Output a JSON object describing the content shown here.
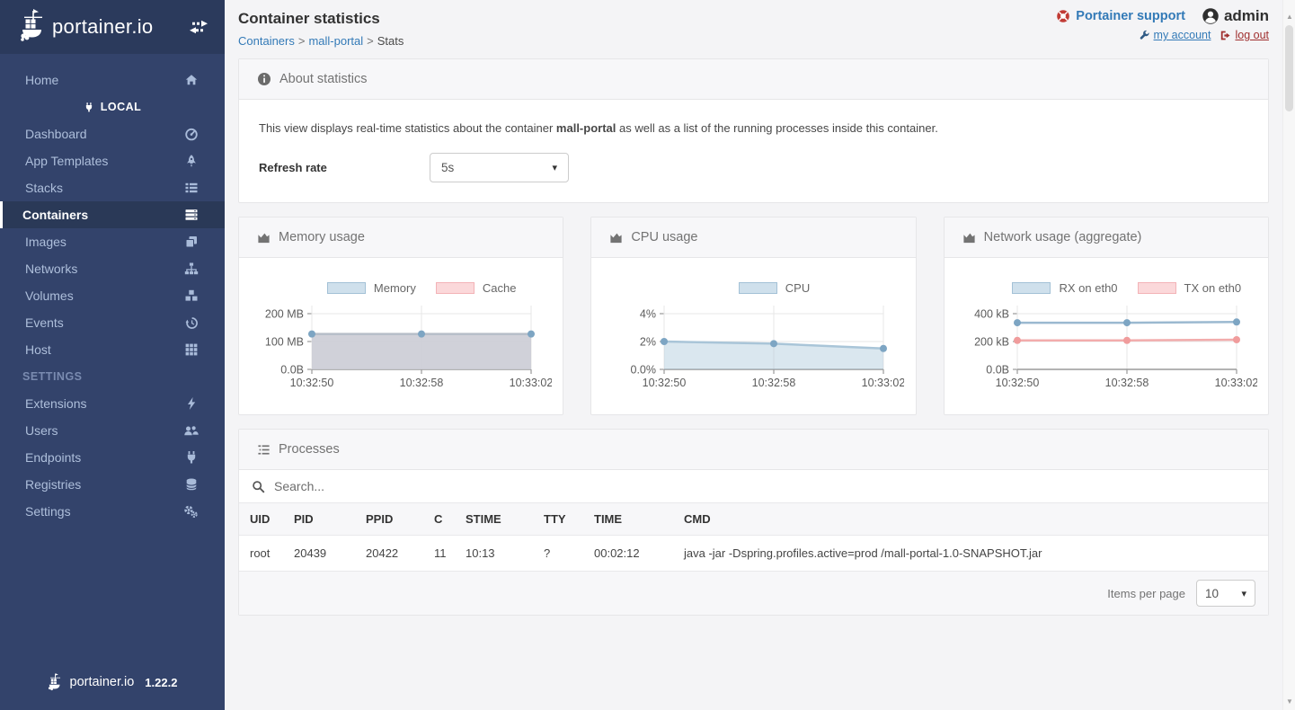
{
  "sidebar": {
    "logo_text": "portainer.io",
    "version": "1.22.2",
    "local_label": "LOCAL",
    "settings_label": "SETTINGS",
    "items": [
      {
        "label": "Home",
        "icon": "home-icon"
      },
      {
        "label": "Dashboard",
        "icon": "dashboard-icon"
      },
      {
        "label": "App Templates",
        "icon": "rocket-icon"
      },
      {
        "label": "Stacks",
        "icon": "stacks-icon"
      },
      {
        "label": "Containers",
        "icon": "server-icon",
        "selected": true
      },
      {
        "label": "Images",
        "icon": "layers-icon"
      },
      {
        "label": "Networks",
        "icon": "sitemap-icon"
      },
      {
        "label": "Volumes",
        "icon": "cubes-icon"
      },
      {
        "label": "Events",
        "icon": "history-icon"
      },
      {
        "label": "Host",
        "icon": "grid-icon"
      },
      {
        "label": "Extensions",
        "icon": "bolt-icon"
      },
      {
        "label": "Users",
        "icon": "users-icon"
      },
      {
        "label": "Endpoints",
        "icon": "plug-icon"
      },
      {
        "label": "Registries",
        "icon": "database-icon"
      },
      {
        "label": "Settings",
        "icon": "cogs-icon"
      }
    ]
  },
  "header": {
    "title": "Container statistics",
    "breadcrumb_separator": ">",
    "breadcrumb": [
      {
        "label": "Containers"
      },
      {
        "label": "mall-portal"
      },
      {
        "label": "Stats"
      }
    ],
    "support_label": "Portainer support",
    "username": "admin",
    "my_account_label": "my account",
    "log_out_label": "log out"
  },
  "about": {
    "title": "About statistics",
    "description_prefix": "This view displays real-time statistics about the container ",
    "container_name": "mall-portal",
    "description_suffix": " as well as a list of the running processes inside this container.",
    "refresh_label": "Refresh rate",
    "refresh_value": "5s"
  },
  "chart_data": [
    {
      "type": "area",
      "title": "Memory usage",
      "x": [
        "10:32:50",
        "10:32:58",
        "10:33:02"
      ],
      "xlabel": "",
      "ylabel": "",
      "ymax_tick": 200,
      "yticks": [
        {
          "value": 0,
          "label": "0.0B"
        },
        {
          "value": 100,
          "label": "100 MB"
        },
        {
          "value": 200,
          "label": "200 MB"
        }
      ],
      "legend_position": "top",
      "series": [
        {
          "name": "Memory",
          "values": [
            127,
            127,
            127
          ],
          "filled": true,
          "line_color": "#b6bdc8",
          "fill_color": "rgba(204,205,214,0.92)",
          "dot_color": "#7da5c3",
          "legend_fill": "#cfe0ec",
          "legend_border": "#a3c1d6"
        },
        {
          "name": "Cache",
          "values": [
            0,
            0,
            0
          ],
          "filled": false,
          "hidden": true,
          "line_color": "#f2acac",
          "dot_color": "#f09c9c",
          "legend_fill": "#fbd8da",
          "legend_border": "#f3b3b7"
        }
      ]
    },
    {
      "type": "area",
      "title": "CPU usage",
      "x": [
        "10:32:50",
        "10:32:58",
        "10:33:02"
      ],
      "xlabel": "",
      "ylabel": "",
      "ymax_tick": 4,
      "yticks": [
        {
          "value": 0,
          "label": "0.0%"
        },
        {
          "value": 2,
          "label": "2%"
        },
        {
          "value": 4,
          "label": "4%"
        }
      ],
      "legend_position": "top",
      "series": [
        {
          "name": "CPU",
          "values": [
            2.0,
            1.85,
            1.5
          ],
          "filled": true,
          "line_color": "#a9c5d8",
          "fill_color": "rgba(174,201,220,0.45)",
          "dot_color": "#7da5c3",
          "legend_fill": "#cfe0ec",
          "legend_border": "#a3c1d6"
        }
      ]
    },
    {
      "type": "line",
      "title": "Network usage (aggregate)",
      "x": [
        "10:32:50",
        "10:32:58",
        "10:33:02"
      ],
      "xlabel": "",
      "ylabel": "",
      "ymax_tick": 400,
      "yticks": [
        {
          "value": 0,
          "label": "0.0B"
        },
        {
          "value": 200,
          "label": "200 kB"
        },
        {
          "value": 400,
          "label": "400 kB"
        }
      ],
      "legend_position": "top",
      "series": [
        {
          "name": "RX on eth0",
          "values": [
            335,
            335,
            340
          ],
          "filled": false,
          "line_color": "#9bb9d0",
          "dot_color": "#7da5c3",
          "legend_fill": "#cfe0ec",
          "legend_border": "#a3c1d6"
        },
        {
          "name": "TX on eth0",
          "values": [
            208,
            208,
            213
          ],
          "filled": false,
          "line_color": "#f2acac",
          "dot_color": "#f09c9c",
          "legend_fill": "#fbd8da",
          "legend_border": "#f3b3b7"
        }
      ]
    }
  ],
  "processes": {
    "title": "Processes",
    "search_placeholder": "Search...",
    "columns": [
      "UID",
      "PID",
      "PPID",
      "C",
      "STIME",
      "TTY",
      "TIME",
      "CMD"
    ],
    "rows": [
      [
        "root",
        "20439",
        "20422",
        "11",
        "10:13",
        "?",
        "00:02:12",
        "java -jar -Dspring.profiles.active=prod /mall-portal-1.0-SNAPSHOT.jar"
      ]
    ],
    "items_per_page_label": "Items per page",
    "items_per_page_value": "10"
  },
  "colors": {
    "sidebar_bg": "#33436b",
    "sidebar_header_bg": "#2b3a5c",
    "link_blue": "#337ab7",
    "logout_red": "#a02f2f",
    "panel_header_bg": "#f7f7f9"
  }
}
